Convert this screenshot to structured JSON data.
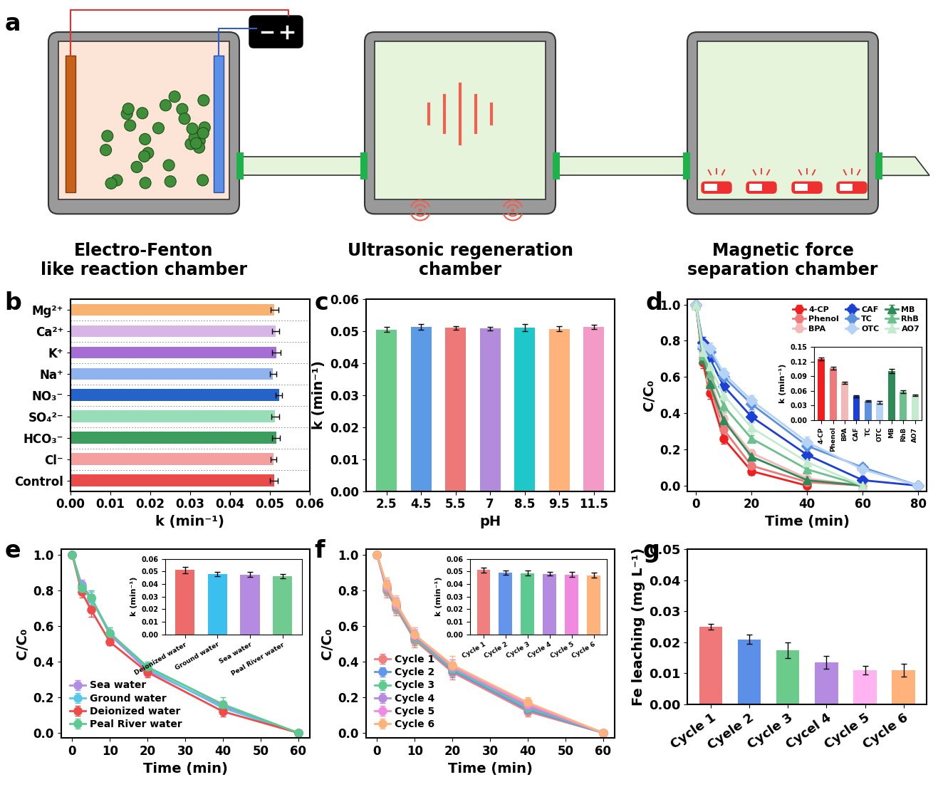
{
  "diagram": {
    "panel": "a",
    "chambers": [
      {
        "label": "Electro-Fenton\nlike reaction chamber"
      },
      {
        "label": "Ultrasonic regeneration\nchamber"
      },
      {
        "label": "Magnetic force\nseparation chamber"
      }
    ]
  },
  "chart_data": [
    {
      "panel": "b",
      "type": "bar",
      "orientation": "horizontal",
      "categories": [
        "Mg²⁺",
        "Ca²⁺",
        "K⁺",
        "Na⁺",
        "NO₃⁻",
        "SO₄²⁻",
        "HCO₃⁻",
        "Cl⁻",
        "Control"
      ],
      "values": [
        0.0512,
        0.0515,
        0.0517,
        0.0508,
        0.0523,
        0.0514,
        0.0516,
        0.051,
        0.0511
      ],
      "errors": [
        0.001,
        0.0009,
        0.0011,
        0.0008,
        0.0008,
        0.001,
        0.001,
        0.0007,
        0.001
      ],
      "colors": [
        "#F9B270",
        "#D7B5E6",
        "#A66DD4",
        "#8EB3EF",
        "#2563C9",
        "#96DDB8",
        "#3C9E5E",
        "#F4A0A0",
        "#EB4A4A"
      ],
      "xlabel": "k (min⁻¹)",
      "xlim": [
        0,
        0.06
      ],
      "xticks": [
        {
          "value": 0,
          "label": "0.00"
        },
        0.01,
        0.02,
        0.03,
        0.04,
        0.05,
        0.06
      ]
    },
    {
      "panel": "c",
      "type": "bar",
      "categories": [
        "2.5",
        "4.5",
        "5.5",
        "7",
        "8.5",
        "9.5",
        "11.5"
      ],
      "values": [
        0.0505,
        0.0513,
        0.051,
        0.0508,
        0.051,
        0.0507,
        0.0513
      ],
      "errors": [
        0.0008,
        0.001,
        0.0005,
        0.0006,
        0.0011,
        0.0008,
        0.0006
      ],
      "colors": [
        "#6BCB8A",
        "#5B9BE6",
        "#EE7878",
        "#B38BDB",
        "#1EC8C8",
        "#FFB27A",
        "#F39AC6"
      ],
      "xlabel": "pH",
      "ylabel": "k (min⁻¹)",
      "ylim": [
        0,
        0.06
      ],
      "yticks": [
        {
          "value": 0,
          "label": "0.00"
        },
        0.01,
        0.02,
        0.03,
        0.04,
        0.05,
        0.06
      ]
    },
    {
      "panel": "d",
      "type": "line",
      "xlabel": "Time (min)",
      "ylabel": "C/C₀",
      "x": [
        0,
        2.5,
        5,
        10,
        20,
        40,
        60,
        80
      ],
      "xlim": [
        -3,
        83
      ],
      "xticks": [
        0,
        20,
        40,
        60,
        80
      ],
      "ylim": [
        -0.03,
        1.03
      ],
      "yticks": [
        0.0,
        0.2,
        0.4,
        0.6,
        0.8,
        1.0
      ],
      "legend": "upper right",
      "series": [
        {
          "name": "4-CP",
          "color": "#F01E1E",
          "marker": "circle",
          "values": [
            1.0,
            0.68,
            0.51,
            0.26,
            0.08,
            0.0,
            null,
            null
          ],
          "errors": [
            0,
            0.03,
            0.03,
            0.03,
            0.02,
            0.01,
            null,
            null
          ]
        },
        {
          "name": "Phenol",
          "color": "#F07878",
          "marker": "circle",
          "values": [
            1.0,
            0.71,
            0.55,
            0.31,
            0.11,
            0.02,
            0.0,
            null
          ],
          "errors": [
            0,
            0.03,
            0.03,
            0.03,
            0.02,
            0.01,
            0,
            null
          ]
        },
        {
          "name": "BPA",
          "color": "#F4B8B8",
          "marker": "circle",
          "values": [
            1.0,
            0.74,
            0.59,
            0.37,
            0.18,
            0.04,
            0.0,
            null
          ],
          "errors": [
            0,
            0.03,
            0.03,
            0.03,
            0.02,
            0.01,
            0,
            null
          ]
        },
        {
          "name": "CAF",
          "color": "#1C3FD6",
          "marker": "diamond",
          "values": [
            1.0,
            0.79,
            0.7,
            0.55,
            0.38,
            0.17,
            0.03,
            0.0
          ],
          "errors": [
            0,
            0.03,
            0.03,
            0.03,
            0.03,
            0.03,
            0.01,
            0
          ]
        },
        {
          "name": "TC",
          "color": "#5C91E0",
          "marker": "diamond",
          "values": [
            1.0,
            0.76,
            0.74,
            0.6,
            0.45,
            0.22,
            0.1,
            0.0
          ],
          "errors": [
            0,
            0.03,
            0.03,
            0.03,
            0.03,
            0.03,
            0.02,
            0
          ]
        },
        {
          "name": "OTC",
          "color": "#B5D3F5",
          "marker": "diamond",
          "values": [
            1.0,
            0.77,
            0.76,
            0.62,
            0.47,
            0.24,
            0.09,
            0.0
          ],
          "errors": [
            0,
            0.03,
            0.03,
            0.03,
            0.03,
            0.03,
            0.02,
            0
          ]
        },
        {
          "name": "MB",
          "color": "#2E8B57",
          "marker": "triangle",
          "values": [
            1.0,
            0.7,
            0.56,
            0.36,
            0.16,
            0.03,
            0.0,
            null
          ],
          "errors": [
            0,
            0.03,
            0.03,
            0.03,
            0.02,
            0.01,
            0,
            null
          ]
        },
        {
          "name": "RhB",
          "color": "#6CC08B",
          "marker": "triangle",
          "values": [
            1.0,
            0.72,
            0.62,
            0.44,
            0.26,
            0.09,
            0.0,
            null
          ],
          "errors": [
            0,
            0.03,
            0.03,
            0.03,
            0.02,
            0.02,
            0,
            null
          ]
        },
        {
          "name": "AO7",
          "color": "#C5EBCF",
          "marker": "triangle",
          "values": [
            1.0,
            0.74,
            0.66,
            0.5,
            0.32,
            0.13,
            0.0,
            null
          ],
          "errors": [
            0,
            0.03,
            0.03,
            0.03,
            0.03,
            0.02,
            0,
            null
          ]
        }
      ],
      "inset": {
        "type": "bar",
        "ylabel": "k (min⁻¹)",
        "categories": [
          "4-CP",
          "Phenol",
          "BPA",
          "CAF",
          "TC",
          "OTC",
          "MB",
          "RhB",
          "AO7"
        ],
        "values": [
          0.125,
          0.106,
          0.077,
          0.049,
          0.039,
          0.036,
          0.101,
          0.058,
          0.051
        ],
        "errors": [
          0.003,
          0.003,
          0.002,
          0.002,
          0.002,
          0.003,
          0.004,
          0.003,
          0.002
        ],
        "colors": [
          "#F01E1E",
          "#F07878",
          "#F4B8B8",
          "#1C3FD6",
          "#5C91E0",
          "#B5D3F5",
          "#2E8B57",
          "#6CC08B",
          "#C5EBCF"
        ],
        "ylim": [
          0,
          0.15
        ],
        "yticks": [
          {
            "value": 0,
            "label": "0.00"
          },
          0.03,
          0.06,
          0.09,
          0.12,
          0.15
        ]
      }
    },
    {
      "panel": "e",
      "type": "line",
      "xlabel": "Time (min)",
      "ylabel": "C/C₀",
      "x": [
        0,
        2.5,
        5,
        10,
        20,
        40,
        60
      ],
      "xlim": [
        -3,
        63
      ],
      "xticks": [
        0,
        10,
        20,
        30,
        40,
        50,
        60
      ],
      "ylim": [
        -0.03,
        1.03
      ],
      "yticks": [
        0.0,
        0.2,
        0.4,
        0.6,
        0.8,
        1.0
      ],
      "legend": "lower left",
      "series": [
        {
          "name": "Sea water",
          "color": "#B18CE8",
          "marker": "circle",
          "values": [
            1.0,
            0.83,
            0.76,
            0.55,
            0.35,
            0.15,
            0.0
          ],
          "errors": [
            0,
            0.03,
            0.04,
            0.03,
            0.03,
            0.03,
            0
          ]
        },
        {
          "name": "Ground water",
          "color": "#56C8E8",
          "marker": "circle",
          "values": [
            1.0,
            0.82,
            0.75,
            0.56,
            0.36,
            0.14,
            0.0
          ],
          "errors": [
            0,
            0.03,
            0.04,
            0.03,
            0.03,
            0.03,
            0
          ]
        },
        {
          "name": "Deionized water",
          "color": "#F04A4A",
          "marker": "circle",
          "values": [
            1.0,
            0.79,
            0.69,
            0.51,
            0.34,
            0.12,
            0.0
          ],
          "errors": [
            0,
            0.03,
            0.04,
            0.02,
            0.03,
            0.03,
            0
          ]
        },
        {
          "name": "Peal River water",
          "color": "#5DC88F",
          "marker": "circle",
          "values": [
            1.0,
            0.81,
            0.76,
            0.56,
            0.37,
            0.16,
            0.0
          ],
          "errors": [
            0,
            0.03,
            0.04,
            0.03,
            0.03,
            0.04,
            0
          ]
        }
      ],
      "inset": {
        "type": "bar",
        "ylabel": "k (min⁻¹)",
        "categories": [
          "Deionized water",
          "Ground water",
          "Sea water",
          "Peal River water"
        ],
        "values": [
          0.051,
          0.048,
          0.0475,
          0.046
        ],
        "errors": [
          0.0025,
          0.0018,
          0.002,
          0.0018
        ],
        "colors": [
          "#EE6B6B",
          "#3BBFEE",
          "#B48BE0",
          "#6FCB8F"
        ],
        "ylim": [
          0,
          0.06
        ],
        "yticks": [
          {
            "value": 0,
            "label": "0.00"
          },
          0.01,
          0.02,
          0.03,
          0.04,
          0.05,
          0.06
        ]
      }
    },
    {
      "panel": "f",
      "type": "line",
      "xlabel": "Time (min)",
      "ylabel": "C/C₀",
      "x": [
        0,
        2.5,
        5,
        10,
        20,
        40,
        60
      ],
      "xlim": [
        -3,
        63
      ],
      "xticks": [
        0,
        10,
        20,
        30,
        40,
        50,
        60
      ],
      "ylim": [
        -0.03,
        1.03
      ],
      "yticks": [
        0.0,
        0.2,
        0.4,
        0.6,
        0.8,
        1.0
      ],
      "legend": "lower left",
      "series": [
        {
          "name": "Cycle 1",
          "color": "#F08080",
          "marker": "circle",
          "values": [
            1.0,
            0.8,
            0.7,
            0.52,
            0.34,
            0.12,
            0.0
          ],
          "errors": [
            0,
            0.04,
            0.04,
            0.04,
            0.04,
            0.03,
            0
          ]
        },
        {
          "name": "Cycle 2",
          "color": "#6495ED",
          "marker": "circle",
          "values": [
            1.0,
            0.81,
            0.71,
            0.53,
            0.35,
            0.13,
            0.0
          ],
          "errors": [
            0,
            0.04,
            0.04,
            0.04,
            0.04,
            0.03,
            0
          ]
        },
        {
          "name": "Cycle 3",
          "color": "#5DCB8F",
          "marker": "circle",
          "values": [
            1.0,
            0.81,
            0.71,
            0.53,
            0.36,
            0.14,
            0.0
          ],
          "errors": [
            0,
            0.04,
            0.04,
            0.04,
            0.04,
            0.03,
            0
          ]
        },
        {
          "name": "Cycle 4",
          "color": "#B48BE0",
          "marker": "circle",
          "values": [
            1.0,
            0.82,
            0.72,
            0.54,
            0.37,
            0.15,
            0.0
          ],
          "errors": [
            0,
            0.04,
            0.04,
            0.04,
            0.04,
            0.03,
            0
          ]
        },
        {
          "name": "Cycle 5",
          "color": "#F08AE0",
          "marker": "circle",
          "values": [
            1.0,
            0.82,
            0.72,
            0.55,
            0.37,
            0.16,
            0.0
          ],
          "errors": [
            0,
            0.04,
            0.04,
            0.04,
            0.04,
            0.03,
            0
          ]
        },
        {
          "name": "Cycle 6",
          "color": "#FFB27A",
          "marker": "circle",
          "values": [
            1.0,
            0.83,
            0.73,
            0.55,
            0.38,
            0.17,
            0.0
          ],
          "errors": [
            0,
            0.04,
            0.04,
            0.04,
            0.05,
            0.03,
            0
          ]
        }
      ],
      "inset": {
        "type": "bar",
        "ylabel": "k (min⁻¹)",
        "categories": [
          "Cycle 1",
          "Cycle 2",
          "Cycle 3",
          "Cycle 4",
          "Cycle 5",
          "Cycle 6"
        ],
        "values": [
          0.051,
          0.049,
          0.0485,
          0.048,
          0.0475,
          0.047
        ],
        "errors": [
          0.002,
          0.0018,
          0.002,
          0.0015,
          0.0018,
          0.002
        ],
        "colors": [
          "#F08080",
          "#6495ED",
          "#5DCB8F",
          "#B48BE0",
          "#F08AE0",
          "#FFB27A"
        ],
        "ylim": [
          0,
          0.06
        ],
        "yticks": [
          {
            "value": 0,
            "label": "0.00"
          },
          0.01,
          0.02,
          0.03,
          0.04,
          0.05,
          0.06
        ]
      }
    },
    {
      "panel": "g",
      "type": "bar",
      "ylabel": "Fe leaching (mg L⁻¹)",
      "categories": [
        "Cycle 1",
        "Cyele 2",
        "Cycle 3",
        "Cycel 4",
        "Cycle 5",
        "Cycle 6"
      ],
      "values": [
        0.025,
        0.021,
        0.0175,
        0.0135,
        0.011,
        0.011
      ],
      "errors": [
        0.001,
        0.0015,
        0.0025,
        0.002,
        0.0013,
        0.002
      ],
      "colors": [
        "#F07878",
        "#5B8FE8",
        "#6BCB8A",
        "#B48BE0",
        "#FFB3F0",
        "#FFB27A"
      ],
      "ylim": [
        0,
        0.05
      ],
      "yticks": [
        {
          "value": 0,
          "label": "0.00"
        },
        0.01,
        0.02,
        0.03,
        0.04,
        0.05
      ]
    }
  ]
}
